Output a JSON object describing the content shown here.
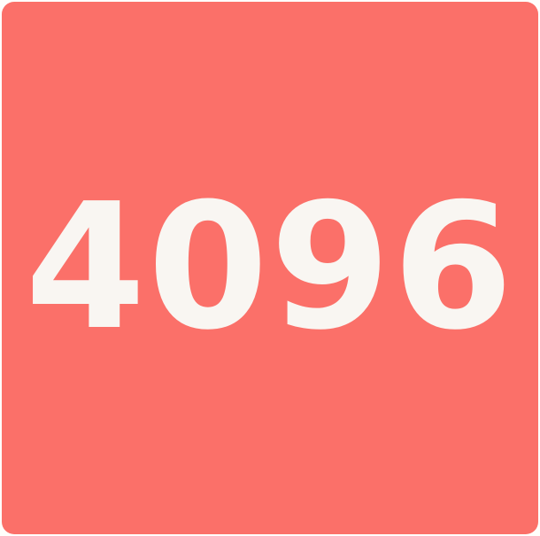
{
  "tile": {
    "value": "4096",
    "background_color": "#fb7069",
    "text_color": "#f9f6f2"
  }
}
